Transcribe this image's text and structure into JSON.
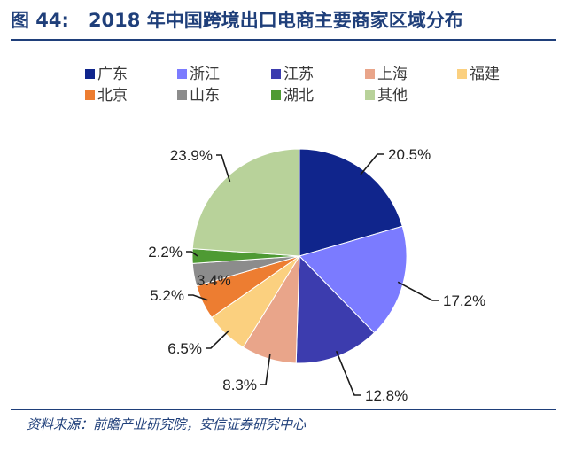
{
  "header": {
    "figure_label": "图 44:",
    "title": "2018 年中国跨境出口电商主要商家区域分布"
  },
  "source": "资料来源：前瞻产业研究院，安信证券研究中心",
  "chart_data": {
    "type": "pie",
    "categories": [
      "广东",
      "浙江",
      "江苏",
      "上海",
      "福建",
      "北京",
      "山东",
      "湖北",
      "其他"
    ],
    "values": [
      20.5,
      17.2,
      12.8,
      8.3,
      6.5,
      5.2,
      3.4,
      2.2,
      23.9
    ],
    "labels": [
      "20.5%",
      "17.2%",
      "12.8%",
      "8.3%",
      "6.5%",
      "5.2%",
      "3.4%",
      "2.2%",
      "23.9%"
    ],
    "colors": [
      "#10258C",
      "#7B7BFF",
      "#3C3CAE",
      "#E9A58A",
      "#FBD07F",
      "#ED7D31",
      "#8C8C8C",
      "#4E9A33",
      "#B8D29A"
    ],
    "legend_position": "top"
  }
}
